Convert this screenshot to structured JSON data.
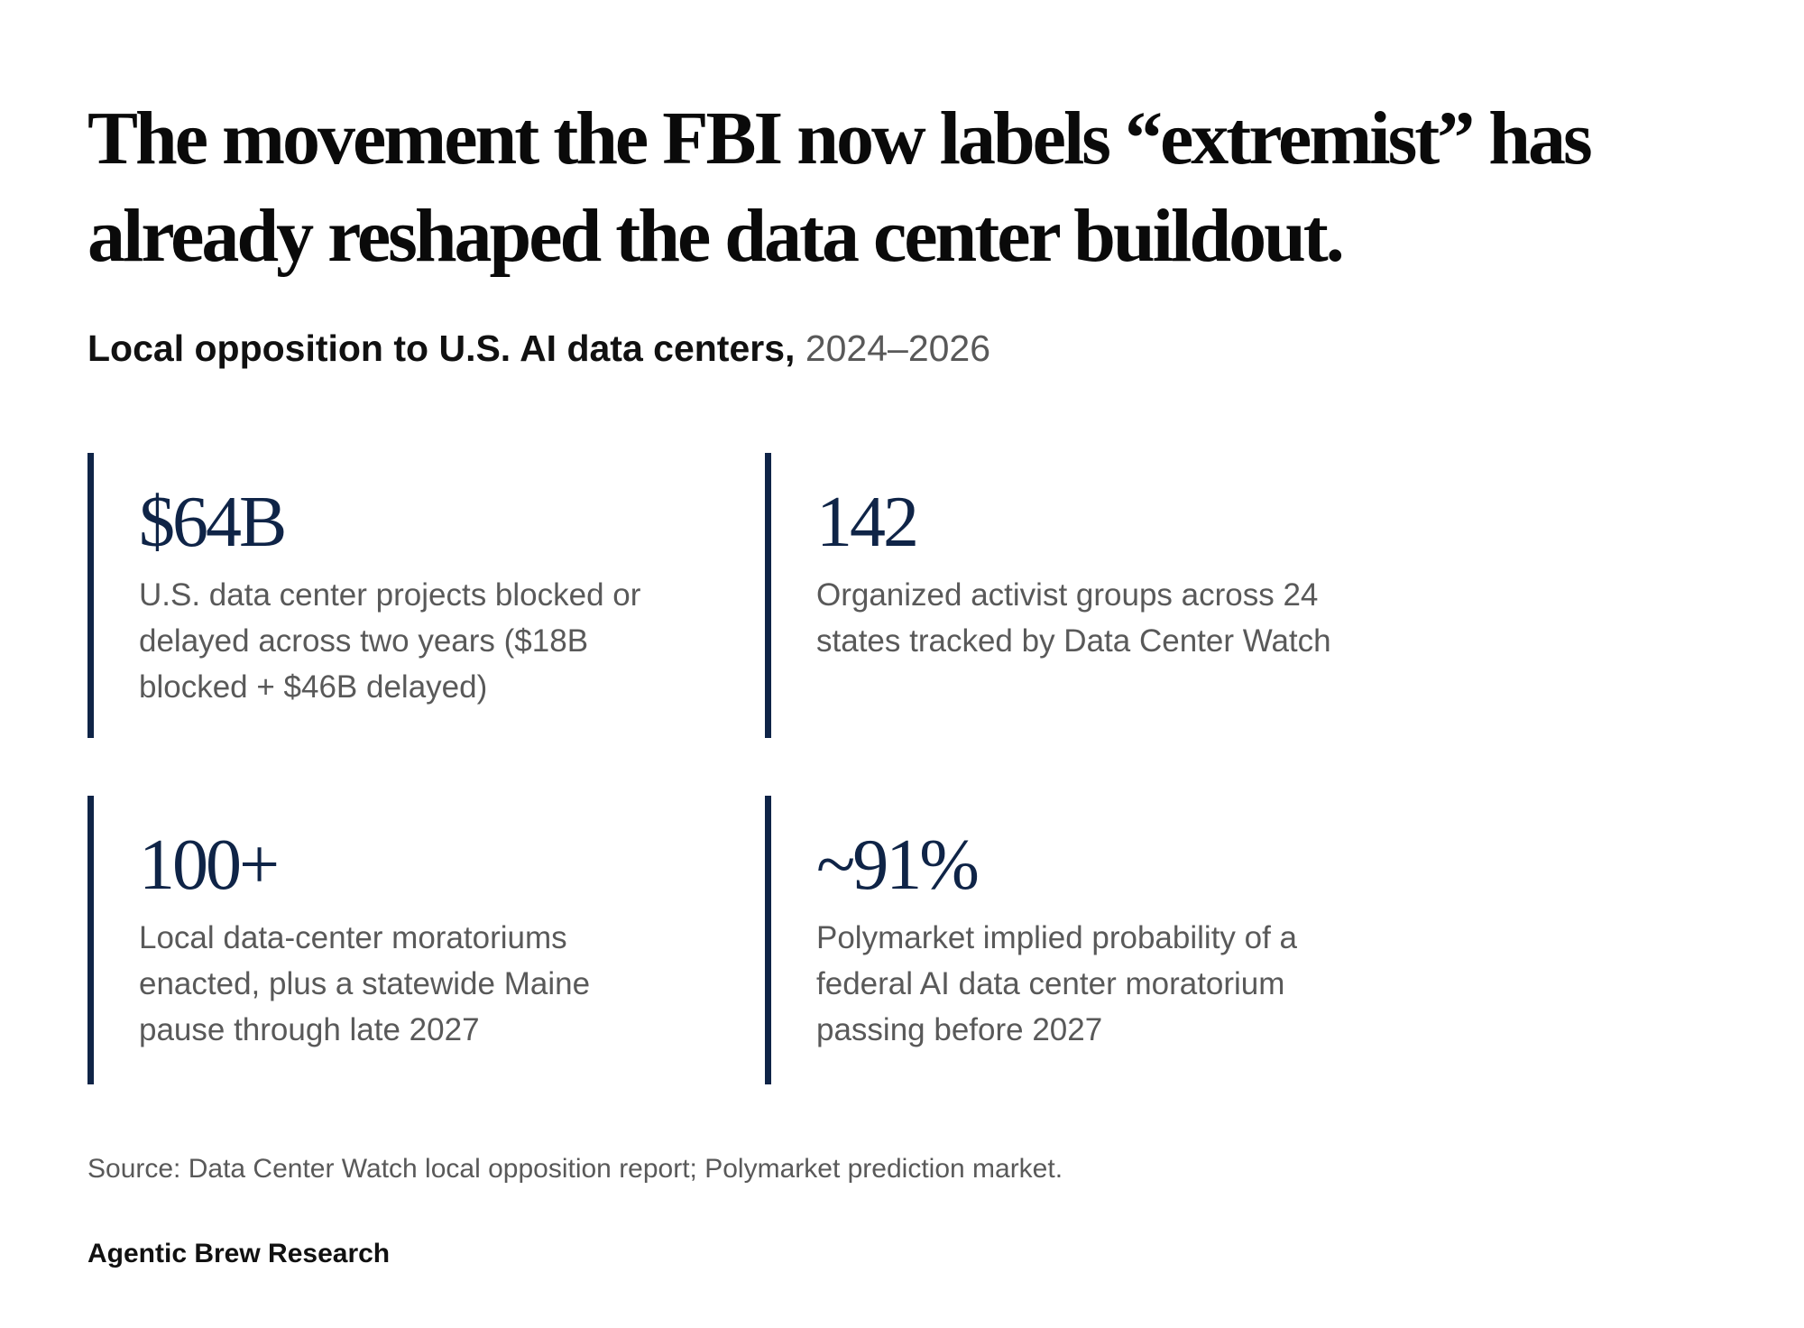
{
  "headline": "The movement the FBI now labels “extremist” has already reshaped the data center buildout.",
  "subhead": {
    "strong": "Local opposition to U.S. AI data centers,",
    "years": "2024–2026"
  },
  "stats": [
    {
      "value": "$64B",
      "description": "U.S. data center projects blocked or delayed across two years ($18B blocked + $46B delayed)"
    },
    {
      "value": "142",
      "description": "Organized activist groups across 24 states tracked by Data Center Watch"
    },
    {
      "value": "100+",
      "description": "Local data-center moratoriums enacted, plus a statewide Maine pause through late 2027"
    },
    {
      "value": "~91%",
      "description": "Polymarket implied probability of a federal AI data center moratorium passing before 2027"
    }
  ],
  "source": "Source: Data Center Watch local opposition report; Polymarket prediction market.",
  "brand": "Agentic Brew Research",
  "colors": {
    "accent": "#0f2447",
    "muted_text": "#595959",
    "text": "#111111"
  }
}
